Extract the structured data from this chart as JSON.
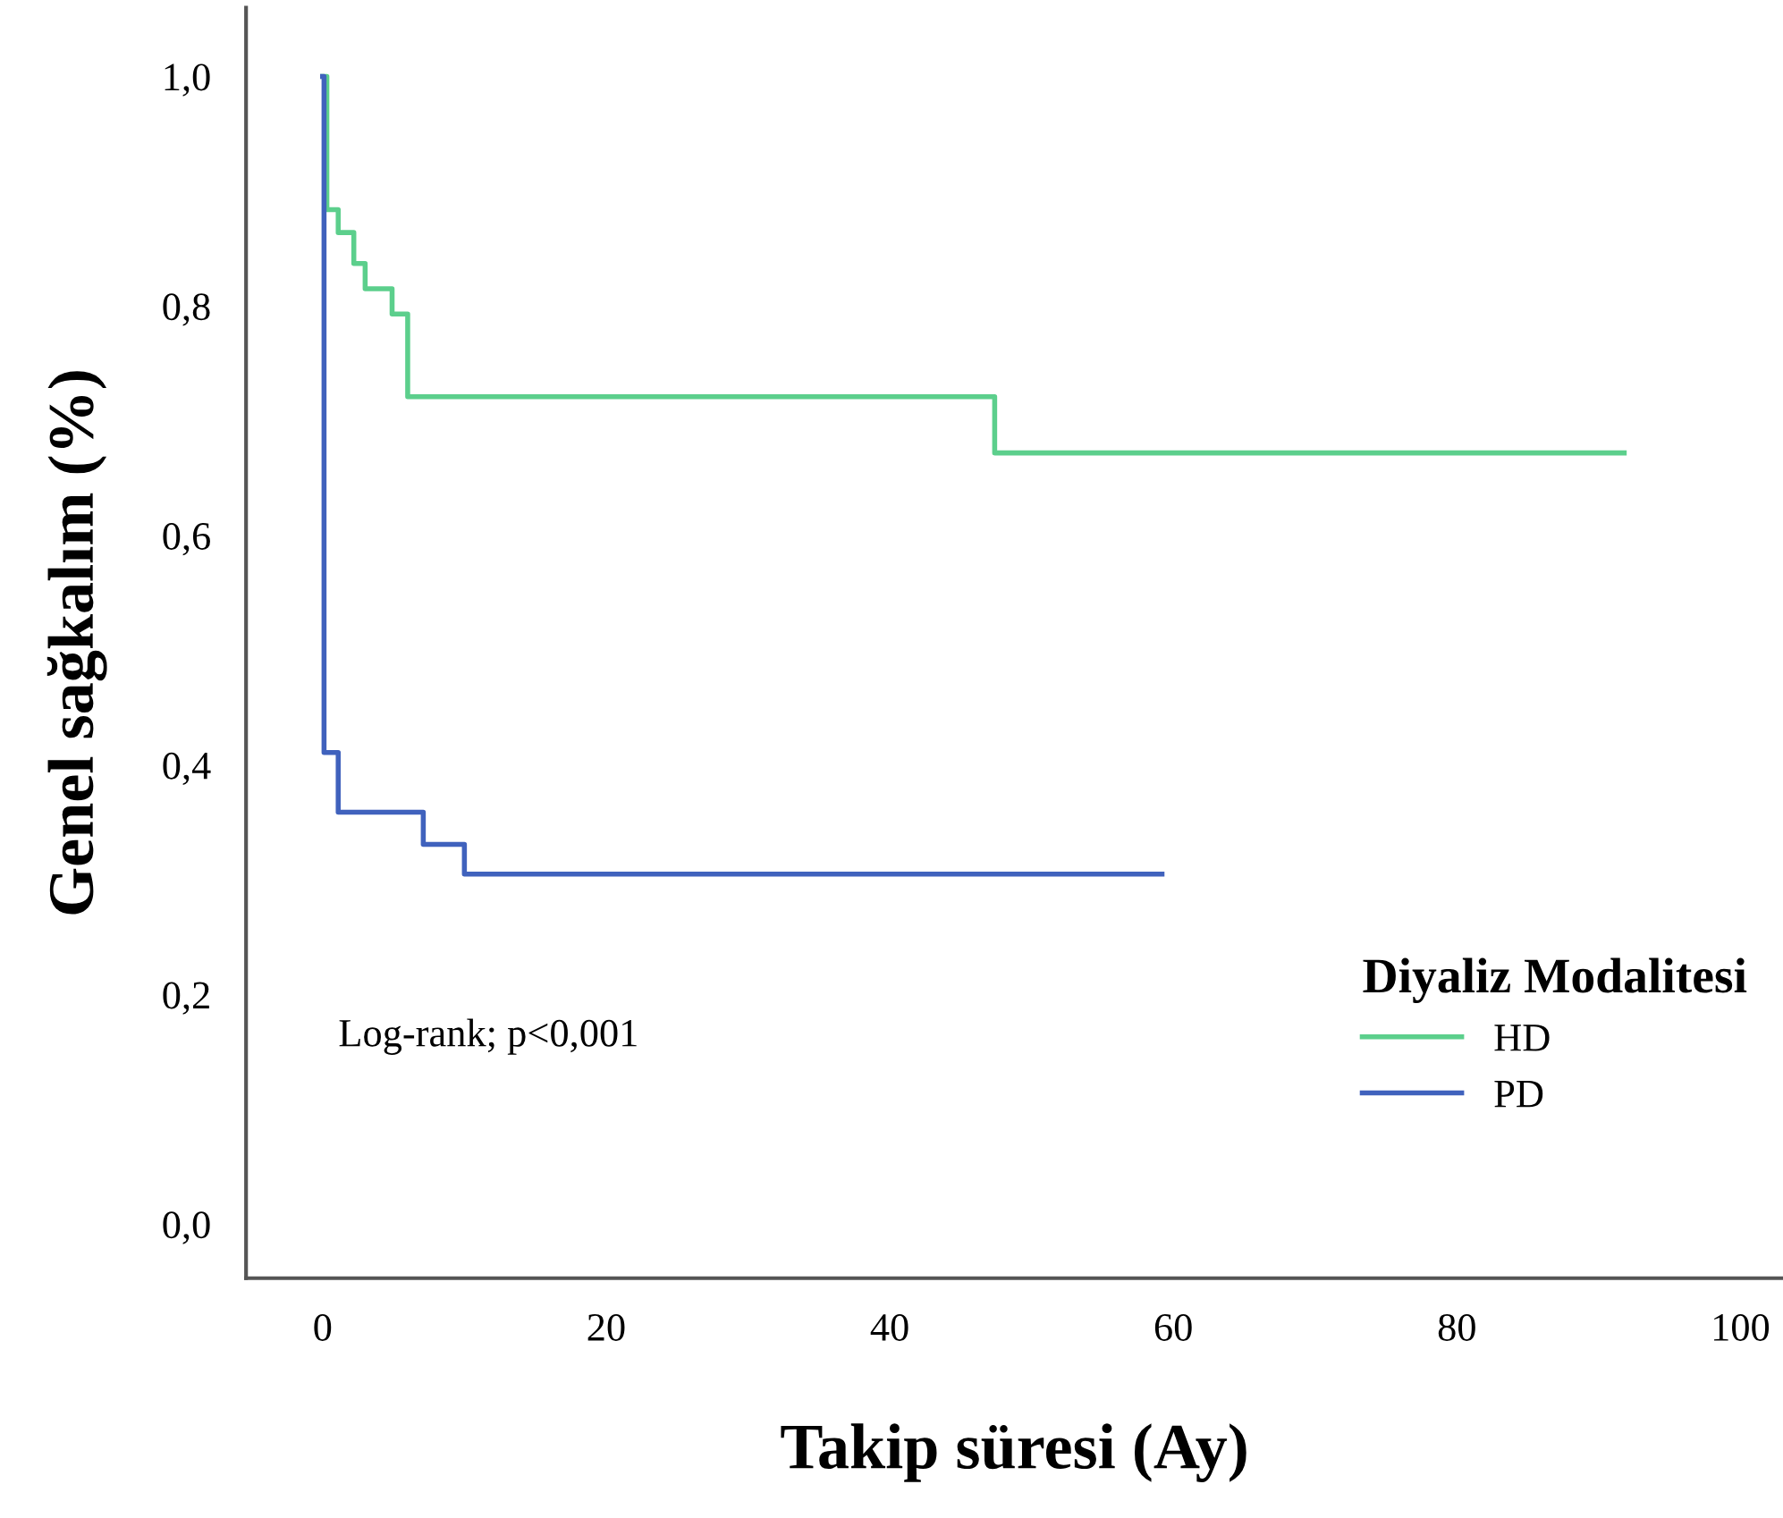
{
  "chart_data": {
    "type": "step",
    "xlabel": "Takip süresi (Ay)",
    "ylabel": "Genel sağkalım (%)",
    "legend_title": "Diyaliz Modalitesi",
    "legend": "bottom right",
    "grid": false,
    "marker": "none",
    "line_style": "solid",
    "xlim": [
      -5.4,
      103
    ],
    "ylim": [
      -0.047,
      1.06
    ],
    "xticks": [
      0,
      20,
      40,
      60,
      80,
      100
    ],
    "yticks": [
      {
        "value": 0.0,
        "label": "0,0"
      },
      {
        "value": 0.2,
        "label": "0,2"
      },
      {
        "value": 0.4,
        "label": "0,4"
      },
      {
        "value": 0.6,
        "label": "0,6"
      },
      {
        "value": 0.8,
        "label": "0,8"
      },
      {
        "value": 1.0,
        "label": "1,0"
      }
    ],
    "annotations": [
      "Log-rank; p<0,001"
    ],
    "series": [
      {
        "name": "HD",
        "color": "#5ccf8c",
        "x": [
          0,
          0.3,
          1.1,
          2.2,
          3.0,
          4.9,
          6.0,
          47.4,
          91.8
        ],
        "values": [
          1.0,
          0.884,
          0.864,
          0.837,
          0.815,
          0.793,
          0.721,
          0.672,
          0.672
        ]
      },
      {
        "name": "PD",
        "color": "#4062bd",
        "x": [
          0,
          0.1,
          1.1,
          7.1,
          10.0,
          59.2
        ],
        "values": [
          1.0,
          0.411,
          0.359,
          0.331,
          0.305,
          0.305
        ]
      }
    ]
  }
}
